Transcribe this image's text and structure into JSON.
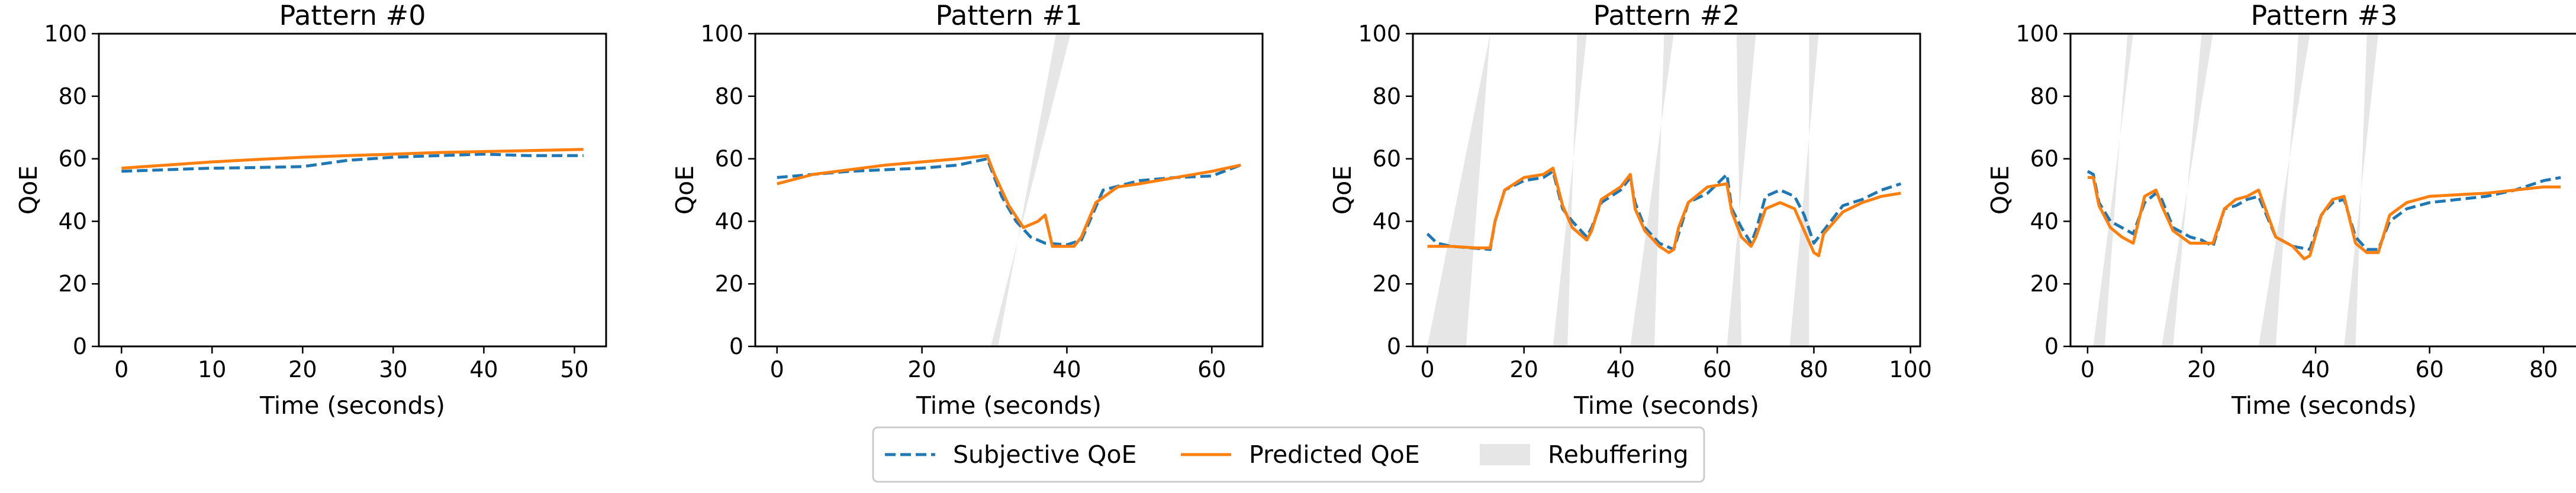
{
  "colors": {
    "subjective": "#1f77b4",
    "predicted": "#ff7f0e",
    "rebuffer": "#e6e6e6"
  },
  "legend": {
    "placement": "bottom-center",
    "entries": [
      {
        "key": "subjective",
        "label": "Subjective QoE"
      },
      {
        "key": "predicted",
        "label": "Predicted QoE"
      },
      {
        "key": "rebuffer",
        "label": "Rebuffering"
      }
    ]
  },
  "chart_data": [
    {
      "type": "line",
      "title": "Pattern #0",
      "xlabel": "Time (seconds)",
      "ylabel": "QoE",
      "xlim": [
        -2.5,
        53.5
      ],
      "ylim": [
        0,
        100
      ],
      "xticks": [
        0,
        10,
        20,
        30,
        40,
        50
      ],
      "yticks": [
        0,
        20,
        40,
        60,
        80,
        100
      ],
      "rebuffering": [],
      "series": [
        {
          "name": "Subjective QoE",
          "key": "subjective",
          "x": [
            0,
            5,
            10,
            15,
            20,
            25,
            30,
            35,
            40,
            45,
            51
          ],
          "y": [
            56,
            56.5,
            57,
            57.2,
            57.5,
            59.5,
            60.5,
            61,
            61.5,
            61,
            61
          ]
        },
        {
          "name": "Predicted QoE",
          "key": "predicted",
          "x": [
            0,
            5,
            10,
            15,
            20,
            25,
            30,
            35,
            40,
            45,
            51
          ],
          "y": [
            57,
            58,
            59,
            59.8,
            60.5,
            61,
            61.5,
            62,
            62.3,
            62.6,
            63
          ]
        }
      ]
    },
    {
      "type": "line",
      "title": "Pattern #1",
      "xlabel": "Time (seconds)",
      "ylabel": "QoE",
      "xlim": [
        -3,
        67
      ],
      "ylim": [
        0,
        100
      ],
      "xticks": [
        0,
        20,
        40,
        60
      ],
      "yticks": [
        0,
        20,
        40,
        60,
        80,
        100
      ],
      "rebuffering": [
        [
          [
            29.5,
            30.5
          ],
          [
            40.5,
            38.5
          ]
        ]
      ],
      "series": [
        {
          "name": "Subjective QoE",
          "key": "subjective",
          "x": [
            0,
            5,
            10,
            15,
            20,
            25,
            29,
            31,
            33,
            35,
            37,
            40,
            42,
            45,
            50,
            55,
            60,
            64
          ],
          "y": [
            54,
            55,
            56,
            56.5,
            57,
            58,
            60,
            48,
            40,
            35,
            33,
            32.5,
            34,
            50,
            53,
            54,
            54.5,
            58
          ]
        },
        {
          "name": "Predicted QoE",
          "key": "predicted",
          "x": [
            0,
            5,
            10,
            15,
            20,
            25,
            29,
            30,
            32,
            34,
            36,
            37,
            38,
            41,
            42,
            44,
            47,
            50,
            55,
            60,
            64
          ],
          "y": [
            52,
            55,
            56.5,
            58,
            59,
            60,
            61,
            55,
            45,
            38,
            40,
            42,
            32,
            32,
            35,
            46,
            51,
            52,
            54,
            56,
            58
          ]
        }
      ]
    },
    {
      "type": "line",
      "title": "Pattern #2",
      "xlabel": "Time (seconds)",
      "ylabel": "QoE",
      "xlim": [
        -3,
        102
      ],
      "ylim": [
        0,
        100
      ],
      "xticks": [
        0,
        20,
        40,
        60,
        80,
        100
      ],
      "yticks": [
        0,
        20,
        40,
        60,
        80,
        100
      ],
      "rebuffering": [
        [
          [
            0,
            8
          ],
          [
            13,
            13
          ]
        ],
        [
          [
            26,
            29
          ],
          [
            33,
            31
          ]
        ],
        [
          [
            42,
            47
          ],
          [
            51,
            49
          ]
        ],
        [
          [
            62,
            65
          ],
          [
            68,
            64
          ]
        ],
        [
          [
            75,
            79
          ],
          [
            81,
            79
          ]
        ]
      ],
      "series": [
        {
          "name": "Subjective QoE",
          "key": "subjective",
          "x": [
            0,
            2,
            5,
            9,
            13,
            14,
            16,
            20,
            24,
            26,
            28,
            30,
            33,
            34,
            36,
            40,
            42,
            43,
            45,
            48,
            51,
            52,
            54,
            58,
            62,
            63,
            65,
            67,
            68,
            70,
            73,
            76,
            78,
            80,
            82,
            86,
            90,
            94,
            98
          ],
          "y": [
            36,
            33,
            32,
            31.5,
            31,
            40,
            50,
            53,
            54,
            56,
            44,
            40,
            35,
            38,
            46,
            50,
            54,
            46,
            38,
            33,
            31,
            36,
            46,
            49,
            55,
            44,
            38,
            33,
            37,
            48,
            50,
            48,
            42,
            33,
            37,
            45,
            47,
            50,
            52
          ]
        },
        {
          "name": "Predicted QoE",
          "key": "predicted",
          "x": [
            0,
            5,
            10,
            13,
            14,
            16,
            20,
            24,
            26,
            28,
            30,
            33,
            34,
            36,
            40,
            42,
            43,
            45,
            48,
            50,
            51,
            52,
            54,
            58,
            62,
            63,
            65,
            67,
            68,
            70,
            73,
            76,
            78,
            80,
            81,
            82,
            86,
            90,
            94,
            98
          ],
          "y": [
            32,
            32,
            31.5,
            31.5,
            40,
            50,
            54,
            55,
            57,
            45,
            38,
            34,
            37,
            47,
            51,
            55,
            44,
            37,
            32,
            30,
            31,
            38,
            46,
            51,
            52,
            43,
            35,
            32,
            35,
            44,
            46,
            44,
            37,
            30,
            29,
            36,
            43,
            46,
            48,
            49
          ]
        }
      ]
    },
    {
      "type": "line",
      "title": "Pattern #3",
      "xlabel": "Time (seconds)",
      "ylabel": "QoE",
      "xlim": [
        -3,
        86
      ],
      "ylim": [
        0,
        100
      ],
      "xticks": [
        0,
        20,
        40,
        60,
        80
      ],
      "yticks": [
        0,
        20,
        40,
        60,
        80,
        100
      ],
      "rebuffering": [
        [
          [
            1,
            3
          ],
          [
            8,
            7
          ]
        ],
        [
          [
            13,
            15
          ],
          [
            22,
            20
          ]
        ],
        [
          [
            30,
            33
          ],
          [
            39,
            37
          ]
        ],
        [
          [
            45,
            47
          ],
          [
            51,
            49
          ]
        ]
      ],
      "series": [
        {
          "name": "Subjective QoE",
          "key": "subjective",
          "x": [
            0,
            1,
            2,
            4,
            6,
            8,
            10,
            12,
            13,
            15,
            18,
            20,
            22,
            24,
            26,
            28,
            30,
            33,
            36,
            39,
            41,
            43,
            45,
            47,
            49,
            51,
            53,
            56,
            60,
            65,
            70,
            75,
            80,
            83
          ],
          "y": [
            56,
            55,
            46,
            40,
            38,
            36,
            46,
            49,
            47,
            38,
            35,
            34,
            32,
            44,
            45,
            47,
            48,
            35,
            32,
            31,
            42,
            46,
            47,
            35,
            31,
            31,
            40,
            44,
            46,
            47,
            48,
            50,
            53,
            54
          ]
        },
        {
          "name": "Predicted QoE",
          "key": "predicted",
          "x": [
            0,
            1,
            2,
            4,
            6,
            8,
            10,
            12,
            13,
            15,
            18,
            20,
            22,
            24,
            26,
            28,
            30,
            33,
            36,
            38,
            39,
            41,
            43,
            45,
            47,
            49,
            51,
            53,
            56,
            60,
            65,
            70,
            75,
            80,
            83
          ],
          "y": [
            54,
            54,
            45,
            38,
            35,
            33,
            48,
            50,
            45,
            37,
            33,
            33,
            33,
            44,
            47,
            48,
            50,
            35,
            32,
            28,
            29,
            42,
            47,
            48,
            33,
            30,
            30,
            42,
            46,
            48,
            48.5,
            49,
            50,
            51,
            51
          ]
        }
      ]
    }
  ]
}
